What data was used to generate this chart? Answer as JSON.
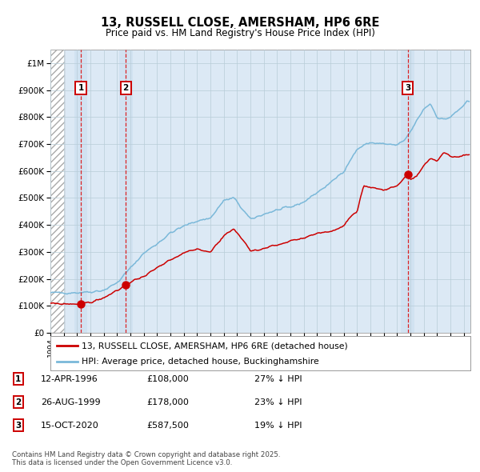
{
  "title": "13, RUSSELL CLOSE, AMERSHAM, HP6 6RE",
  "subtitle": "Price paid vs. HM Land Registry's House Price Index (HPI)",
  "ylim": [
    0,
    1050000
  ],
  "xlim_start": 1994.0,
  "xlim_end": 2025.5,
  "hpi_color": "#7ab8d9",
  "property_color": "#cc0000",
  "background_color": "#dce9f5",
  "plot_bg": "#ffffff",
  "grid_color": "#b8cdd8",
  "hatch_end": 1995.08,
  "transactions": [
    {
      "num": 1,
      "date_str": "12-APR-1996",
      "year": 1996.28,
      "price": 108000,
      "pct_hpi": "27% ↓ HPI"
    },
    {
      "num": 2,
      "date_str": "26-AUG-1999",
      "year": 1999.65,
      "price": 178000,
      "pct_hpi": "23% ↓ HPI"
    },
    {
      "num": 3,
      "date_str": "15-OCT-2020",
      "year": 2020.79,
      "price": 587500,
      "pct_hpi": "19% ↓ HPI"
    }
  ],
  "legend_property_label": "13, RUSSELL CLOSE, AMERSHAM, HP6 6RE (detached house)",
  "legend_hpi_label": "HPI: Average price, detached house, Buckinghamshire",
  "footnote": "Contains HM Land Registry data © Crown copyright and database right 2025.\nThis data is licensed under the Open Government Licence v3.0.",
  "yticks": [
    0,
    100000,
    200000,
    300000,
    400000,
    500000,
    600000,
    700000,
    800000,
    900000,
    1000000
  ],
  "hpi_anchors_years": [
    1994.0,
    1995.0,
    1996.0,
    1997.0,
    1998.0,
    1999.0,
    2000.0,
    2001.0,
    2002.0,
    2003.0,
    2004.0,
    2005.0,
    2006.0,
    2007.0,
    2007.75,
    2009.0,
    2010.0,
    2011.0,
    2012.0,
    2013.0,
    2014.0,
    2015.0,
    2016.0,
    2017.0,
    2017.5,
    2018.0,
    2019.0,
    2020.0,
    2020.5,
    2021.0,
    2022.0,
    2022.5,
    2023.0,
    2023.5,
    2024.0,
    2024.5,
    2025.25
  ],
  "hpi_anchors_vals": [
    148000,
    148500,
    149000,
    152000,
    158000,
    185000,
    240000,
    295000,
    330000,
    370000,
    395000,
    415000,
    425000,
    490000,
    500000,
    420000,
    440000,
    455000,
    465000,
    485000,
    520000,
    555000,
    600000,
    680000,
    695000,
    705000,
    700000,
    695000,
    710000,
    745000,
    830000,
    850000,
    800000,
    790000,
    800000,
    820000,
    855000
  ],
  "prop_anchors_years": [
    1994.0,
    1995.0,
    1996.0,
    1996.28,
    1997.0,
    1998.0,
    1999.0,
    1999.65,
    2000.0,
    2001.0,
    2002.0,
    2003.0,
    2004.0,
    2005.0,
    2006.0,
    2007.0,
    2007.75,
    2008.5,
    2009.0,
    2009.5,
    2010.0,
    2011.0,
    2012.0,
    2013.0,
    2014.0,
    2015.0,
    2016.0,
    2016.5,
    2017.0,
    2017.5,
    2018.0,
    2018.5,
    2019.0,
    2020.0,
    2020.79,
    2021.0,
    2021.5,
    2022.0,
    2022.5,
    2023.0,
    2023.5,
    2024.0,
    2024.5,
    2025.0
  ],
  "prop_anchors_vals": [
    108000,
    107000,
    107000,
    108000,
    112000,
    130000,
    155000,
    178000,
    188000,
    210000,
    240000,
    268000,
    295000,
    310000,
    300000,
    360000,
    385000,
    340000,
    308000,
    305000,
    315000,
    325000,
    340000,
    350000,
    370000,
    375000,
    395000,
    430000,
    445000,
    545000,
    540000,
    535000,
    530000,
    545000,
    587500,
    568000,
    580000,
    620000,
    645000,
    635000,
    670000,
    655000,
    650000,
    660000
  ]
}
